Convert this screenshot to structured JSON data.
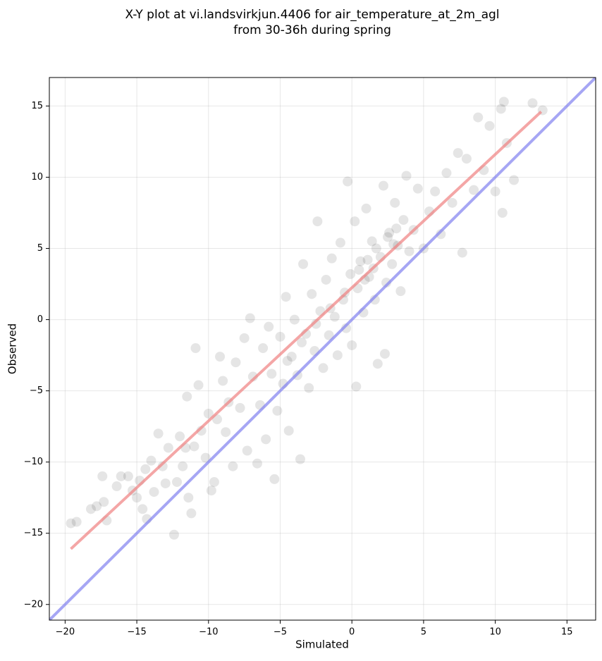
{
  "chart_data": {
    "type": "scatter",
    "title": "X-Y plot at vi.landsvirkjun.4406 for air_temperature_at_2m_agl",
    "subtitle": "from 30-36h during spring",
    "xlabel": "Simulated",
    "ylabel": "Observed",
    "xlim": [
      -21.1,
      17
    ],
    "ylim": [
      -21.1,
      17
    ],
    "xticks": [
      {
        "value": -20,
        "label": "−20"
      },
      {
        "value": -15,
        "label": "−15"
      },
      {
        "value": -10,
        "label": "−10"
      },
      {
        "value": -5,
        "label": "−5"
      },
      0,
      5,
      10,
      15
    ],
    "yticks": [
      {
        "value": -20,
        "label": "−20"
      },
      {
        "value": -15,
        "label": "−15"
      },
      {
        "value": -10,
        "label": "−10"
      },
      {
        "value": -5,
        "label": "−5"
      },
      0,
      5,
      10,
      15
    ],
    "grid": true,
    "color": "#000000",
    "x": [
      -19.6,
      -19.2,
      -18.2,
      -17.8,
      -17.3,
      -17.1,
      -17.4,
      -16.4,
      -16.1,
      -15.6,
      -15.3,
      -15.0,
      -14.8,
      -14.6,
      -14.4,
      -14.3,
      -14.0,
      -13.8,
      -13.5,
      -13.2,
      -13.0,
      -12.8,
      -12.4,
      -12.2,
      -12.0,
      -11.8,
      -11.6,
      -11.5,
      -11.4,
      -11.2,
      -11.0,
      -10.9,
      -10.7,
      -10.5,
      -10.2,
      -10.0,
      -9.8,
      -9.6,
      -9.4,
      -9.2,
      -9.0,
      -8.8,
      -8.6,
      -8.3,
      -8.1,
      -7.8,
      -7.5,
      -7.3,
      -7.1,
      -6.9,
      -6.6,
      -6.4,
      -6.2,
      -6.0,
      -5.8,
      -5.6,
      -5.4,
      -5.2,
      -5.0,
      -4.8,
      -4.6,
      -4.4,
      -4.2,
      -4.0,
      -3.8,
      -3.6,
      -3.4,
      -3.2,
      -3.0,
      -2.8,
      -2.6,
      -2.4,
      -2.2,
      -2.0,
      -1.8,
      -1.6,
      -1.4,
      -1.2,
      -1.0,
      -0.8,
      -0.6,
      -0.4,
      -0.3,
      -0.1,
      0.0,
      0.2,
      0.4,
      0.6,
      0.8,
      1.0,
      1.2,
      1.4,
      1.6,
      1.8,
      2.0,
      2.2,
      2.4,
      2.6,
      2.8,
      3.0,
      3.2,
      3.4,
      3.6,
      3.8,
      4.0,
      4.3,
      4.6,
      5.0,
      5.4,
      5.8,
      6.2,
      6.6,
      7.0,
      7.4,
      7.7,
      8.0,
      8.5,
      8.8,
      9.2,
      9.6,
      10.0,
      10.4,
      10.5,
      10.8,
      11.3,
      12.6,
      13.3,
      10.6,
      0.3,
      2.3,
      0.5,
      1.1,
      1.7,
      2.5,
      3.1,
      0.9,
      -0.5,
      -1.5,
      -2.5,
      -3.5,
      -4.5,
      2.9,
      1.5
    ],
    "y": [
      -14.3,
      -14.2,
      -13.3,
      -13.1,
      -12.8,
      -14.1,
      -11.0,
      -11.7,
      -11.0,
      -11.0,
      -12.0,
      -12.5,
      -11.3,
      -13.3,
      -10.5,
      -14.0,
      -9.9,
      -12.1,
      -8.0,
      -10.3,
      -11.5,
      -9.0,
      -15.1,
      -11.4,
      -8.2,
      -10.3,
      -9.0,
      -5.4,
      -12.5,
      -13.6,
      -8.9,
      -2.0,
      -4.6,
      -7.8,
      -9.7,
      -6.6,
      -12.0,
      -11.4,
      -7.0,
      -2.6,
      -4.3,
      -7.9,
      -5.8,
      -10.3,
      -3.0,
      -6.2,
      -1.3,
      -9.2,
      0.1,
      -4.0,
      -10.1,
      -6.0,
      -2.0,
      -8.4,
      -0.5,
      -3.8,
      -11.2,
      -6.4,
      -1.2,
      -4.5,
      1.6,
      -7.8,
      -2.6,
      0.0,
      -3.9,
      -9.8,
      3.9,
      -1.0,
      -4.8,
      1.8,
      -2.2,
      6.9,
      0.6,
      -3.4,
      2.8,
      -1.1,
      4.3,
      0.2,
      -2.5,
      5.4,
      1.4,
      -0.6,
      9.7,
      3.2,
      -1.8,
      6.9,
      2.2,
      4.1,
      0.5,
      7.8,
      3.0,
      5.5,
      1.4,
      -3.1,
      4.4,
      9.4,
      2.6,
      6.1,
      3.9,
      8.2,
      5.2,
      2.0,
      7.0,
      10.1,
      4.8,
      6.3,
      9.2,
      5.0,
      7.6,
      9.0,
      6.0,
      10.3,
      8.2,
      11.7,
      4.7,
      11.3,
      9.1,
      14.2,
      10.5,
      13.6,
      9.0,
      14.8,
      7.5,
      12.4,
      9.8,
      15.2,
      14.7,
      15.3,
      -4.7,
      -2.4,
      3.5,
      4.2,
      5.0,
      5.8,
      6.4,
      2.8,
      1.9,
      0.8,
      -0.3,
      -1.6,
      -2.9,
      5.3,
      3.6
    ],
    "lines": [
      {
        "color": "#f08080",
        "x": [
          -19.6,
          13.2
        ],
        "y": [
          -16.1,
          14.6
        ]
      },
      {
        "color": "#8080f0",
        "x": [
          -21.1,
          17
        ],
        "y": [
          -21.1,
          17
        ]
      }
    ]
  }
}
